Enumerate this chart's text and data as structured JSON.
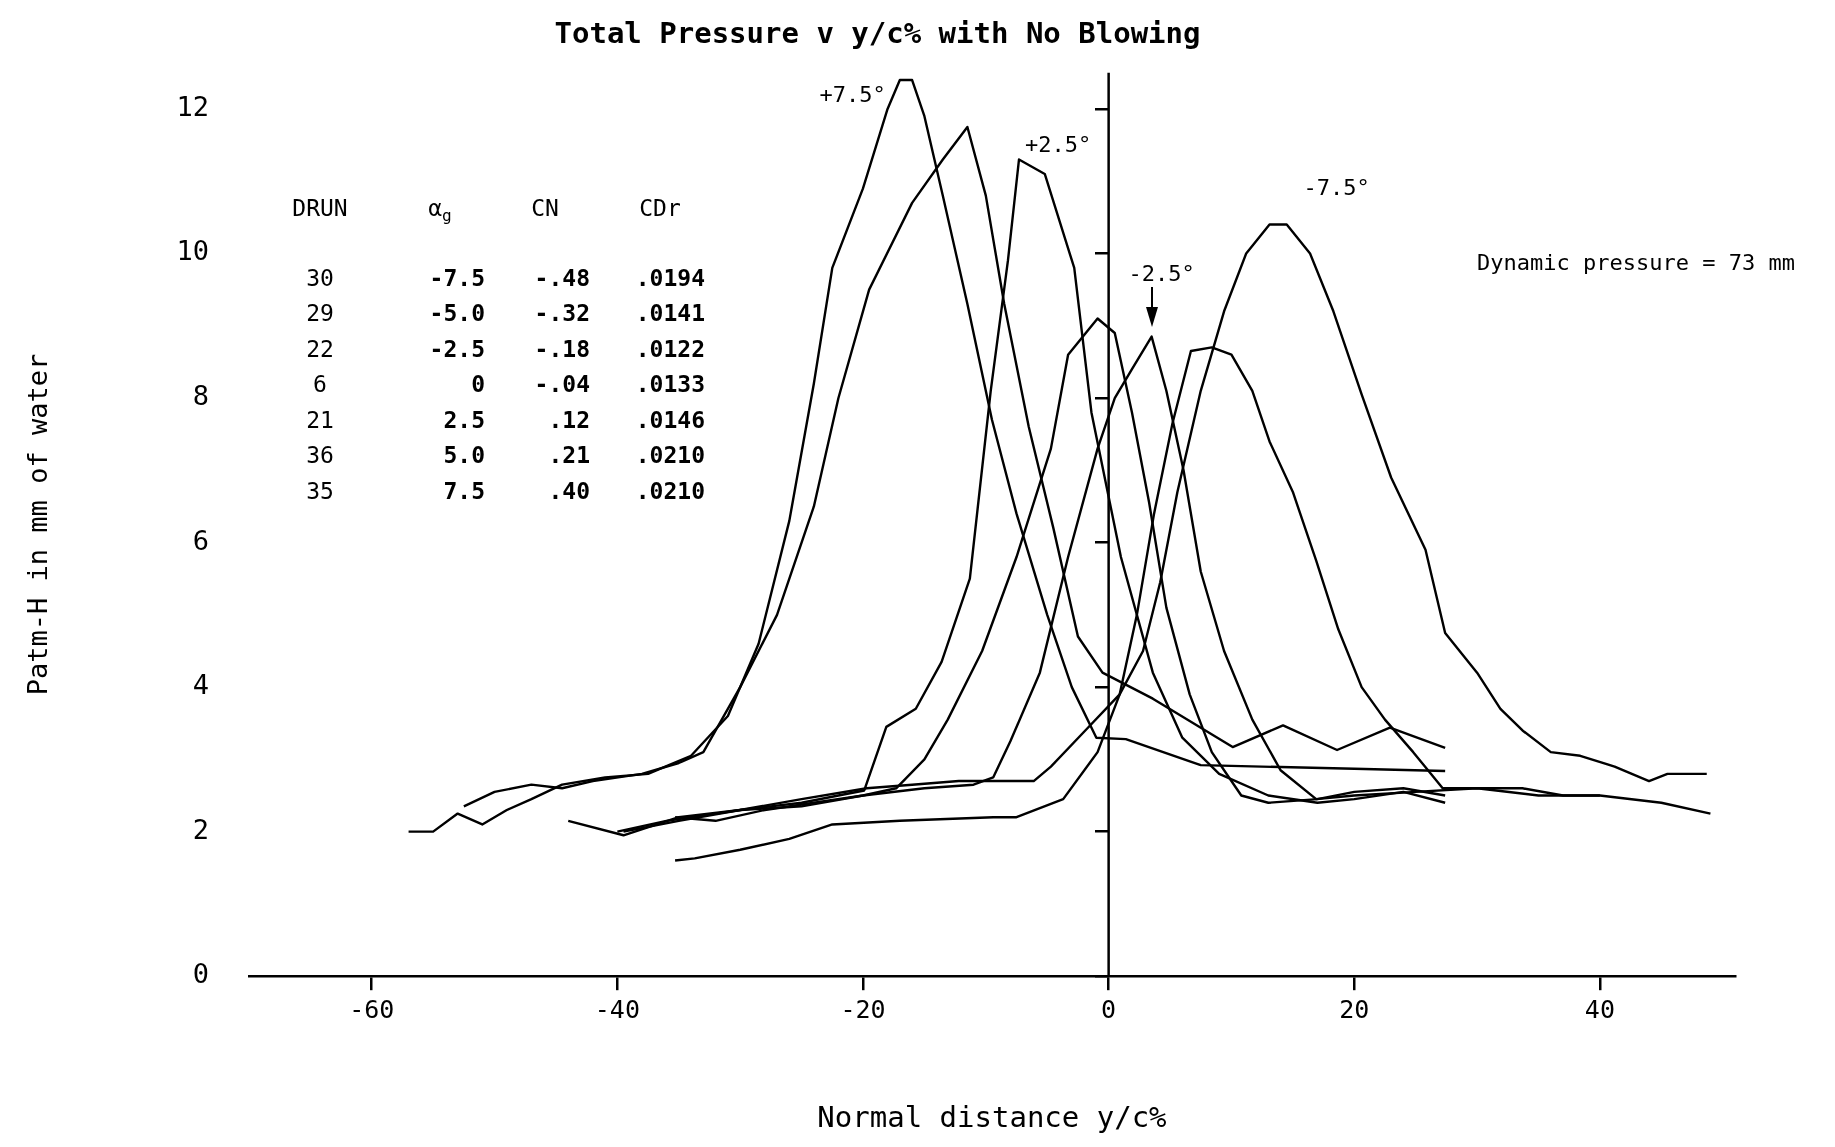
{
  "chart_data": {
    "type": "line",
    "title": "Total Pressure v y/c% with No Blowing",
    "xlabel": "Normal distance y/c%",
    "ylabel": "Patm-H in mm of water",
    "xlim": [
      -70,
      51
    ],
    "ylim": [
      0,
      12.5
    ],
    "xticks": [
      -60,
      -40,
      -20,
      0,
      20,
      40
    ],
    "yticks": [
      0,
      2,
      4,
      6,
      8,
      10,
      12
    ],
    "grid": false,
    "legend": false,
    "marker": "none",
    "line_style": "solid",
    "ref_lines": [
      {
        "axis": "x",
        "value": 0,
        "color": "#000000"
      }
    ],
    "series": [
      {
        "color": "#000000",
        "x": [
          -57,
          -55,
          -53,
          -51,
          -49,
          -47,
          -44.5,
          -41,
          -37.5,
          -34,
          -31,
          -28.5,
          -26,
          -24,
          -22.5,
          -20,
          -18,
          -17,
          -16,
          -15,
          -13.5,
          -11.5,
          -9.5,
          -7.5,
          -5,
          -3,
          -1,
          1.4,
          7.5,
          20,
          27.4
        ],
        "values": [
          2.0,
          2.0,
          2.25,
          2.1,
          2.3,
          2.45,
          2.65,
          2.75,
          2.8,
          3.05,
          3.6,
          4.6,
          6.3,
          8.2,
          9.8,
          10.9,
          12.0,
          12.4,
          12.4,
          11.9,
          10.8,
          9.3,
          7.7,
          6.4,
          5.0,
          4.0,
          3.3,
          3.28,
          2.92,
          2.87,
          2.84
        ]
      },
      {
        "color": "#000000",
        "x": [
          -52.5,
          -50,
          -47,
          -44.5,
          -42,
          -38,
          -35,
          -33,
          -30,
          -27,
          -24,
          -22,
          -19.5,
          -16,
          -13.5,
          -11.5,
          -10,
          -8.5,
          -6.5,
          -4.5,
          -2.5,
          -0.5,
          3.6,
          10.1,
          14.2,
          18.6,
          22.9,
          27.4
        ],
        "values": [
          2.35,
          2.55,
          2.65,
          2.6,
          2.7,
          2.8,
          2.95,
          3.1,
          4.0,
          5.0,
          6.5,
          8.0,
          9.5,
          10.7,
          11.3,
          11.75,
          10.8,
          9.3,
          7.6,
          6.2,
          4.7,
          4.2,
          3.84,
          3.17,
          3.47,
          3.13,
          3.44,
          3.16
        ]
      },
      {
        "color": "#000000",
        "x": [
          -44,
          -39.5,
          -35,
          -30,
          -25,
          -22,
          -19.9,
          -18.1,
          -15.7,
          -13.6,
          -11.3,
          -9.6,
          -8.2,
          -7.3,
          -5.2,
          -2.8,
          -1.4,
          1,
          3.6,
          6,
          9,
          13,
          17,
          20,
          24,
          27.4
        ],
        "values": [
          2.15,
          1.95,
          2.2,
          2.3,
          2.4,
          2.5,
          2.57,
          3.45,
          3.7,
          4.35,
          5.5,
          8.1,
          9.9,
          11.3,
          11.1,
          9.8,
          7.8,
          5.8,
          4.2,
          3.3,
          2.8,
          2.5,
          2.4,
          2.45,
          2.55,
          2.4
        ]
      },
      {
        "color": "#000000",
        "x": [
          -39.5,
          -35,
          -30,
          -25,
          -20,
          -17.3,
          -15,
          -13.1,
          -10.3,
          -7.5,
          -4.7,
          -3.3,
          -0.9,
          0.5,
          1.9,
          3.3,
          4.7,
          6.6,
          8.4,
          10.8,
          13,
          17,
          20,
          24,
          27.4
        ],
        "values": [
          2.0,
          2.15,
          2.3,
          2.35,
          2.5,
          2.6,
          3.0,
          3.55,
          4.5,
          5.8,
          7.3,
          8.6,
          9.1,
          8.9,
          7.8,
          6.55,
          5.1,
          3.9,
          3.1,
          2.5,
          2.4,
          2.45,
          2.55,
          2.6,
          2.5
        ]
      },
      {
        "color": "#000000",
        "x": [
          -35.3,
          -32,
          -28,
          -24,
          -20,
          -15,
          -11,
          -9.4,
          -8,
          -5.6,
          -3.3,
          -0.9,
          0.5,
          1.9,
          3.5,
          4.7,
          6.1,
          7.5,
          9.4,
          11.7,
          14,
          16.9,
          20,
          25,
          30,
          35,
          40
        ],
        "values": [
          2.2,
          2.15,
          2.3,
          2.4,
          2.5,
          2.6,
          2.65,
          2.75,
          3.25,
          4.2,
          5.8,
          7.3,
          8.0,
          8.4,
          8.85,
          8.1,
          7.0,
          5.6,
          4.5,
          3.55,
          2.85,
          2.45,
          2.5,
          2.55,
          2.6,
          2.5,
          2.5
        ]
      },
      {
        "color": "#000000",
        "x": [
          -35.3,
          -33.7,
          -30,
          -26,
          -22.5,
          -17,
          -9.4,
          -7.5,
          -3.7,
          -0.9,
          0.9,
          2.3,
          3.7,
          5.2,
          6.7,
          8.4,
          10,
          11.7,
          13.1,
          15,
          16.9,
          18.7,
          20.6,
          22.5,
          24.8,
          27.2,
          30,
          33.7,
          37,
          40,
          45,
          49
        ],
        "values": [
          1.6,
          1.63,
          1.75,
          1.9,
          2.1,
          2.15,
          2.2,
          2.2,
          2.45,
          3.1,
          3.9,
          5.0,
          6.4,
          7.65,
          8.65,
          8.7,
          8.6,
          8.1,
          7.4,
          6.7,
          5.75,
          4.8,
          4.0,
          3.55,
          3.1,
          2.6,
          2.6,
          2.6,
          2.5,
          2.5,
          2.4,
          2.25
        ]
      },
      {
        "color": "#000000",
        "x": [
          -40,
          -36,
          -30,
          -25,
          -19.7,
          -16,
          -12.2,
          -8,
          -6.1,
          -4.7,
          -1.9,
          0.9,
          2.8,
          4.2,
          5.6,
          7.5,
          9.4,
          11.2,
          13.1,
          14.5,
          16.4,
          18.3,
          20.6,
          23,
          25.8,
          27.4,
          30,
          31.9,
          33.7,
          36,
          38.4,
          41.2,
          44,
          45.5,
          48.7
        ],
        "values": [
          2.0,
          2.15,
          2.3,
          2.45,
          2.6,
          2.65,
          2.7,
          2.7,
          2.7,
          2.9,
          3.4,
          3.9,
          4.5,
          5.45,
          6.7,
          8.1,
          9.2,
          10.0,
          10.4,
          10.4,
          10.0,
          9.2,
          8.05,
          6.9,
          5.9,
          4.75,
          4.2,
          3.7,
          3.4,
          3.1,
          3.05,
          2.9,
          2.7,
          2.8,
          2.8
        ]
      }
    ],
    "annotations": [
      {
        "text": "+7.5°",
        "x": -17,
        "y": 12.4
      },
      {
        "text": "+2.5°",
        "x": -7.3,
        "y": 11.3
      },
      {
        "text": "-2.5°",
        "x": 3.5,
        "y": 8.85
      },
      {
        "text": "-7.5°",
        "x": 14.5,
        "y": 10.4
      },
      "Dynamic pressure = 73 mm",
      "DRUN",
      "α$_{g}$",
      "CN",
      "CDr",
      "30",
      "-7.5",
      "-.48",
      ".0194",
      "29",
      "-5.0",
      "-.32",
      ".0141",
      "22",
      "-2.5",
      "-.18",
      ".0122",
      "6",
      "0",
      "-.04",
      ".0133",
      "21",
      "2.5",
      ".12",
      ".0146",
      "36",
      "5.0",
      ".21",
      ".0210",
      "35",
      "7.5",
      ".40",
      ".0210"
    ]
  }
}
